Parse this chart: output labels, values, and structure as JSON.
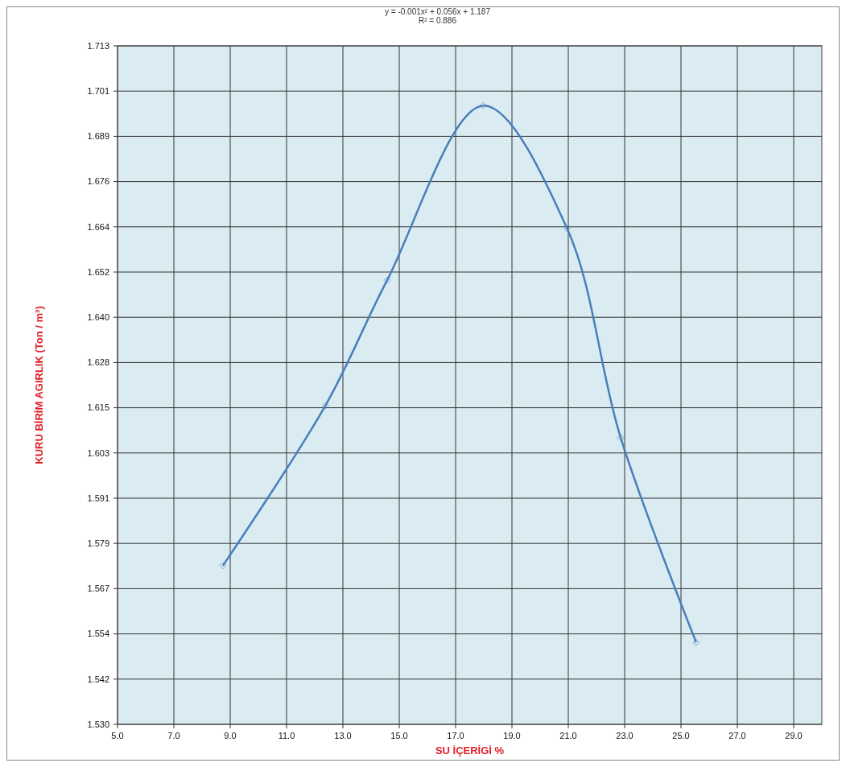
{
  "chart_data": {
    "type": "line",
    "xlabel": "SU İÇERİGİ %",
    "ylabel": "KURU BİRİM AGIRLIK (Ton / m³)",
    "annotations": [
      "y = -0.001x² + 0.056x + 1.187",
      "R² = 0.886"
    ],
    "x": [
      8.74,
      12.38,
      14.57,
      17.98,
      20.96,
      22.86,
      25.54
    ],
    "series": [
      {
        "color": "#4a7ebb",
        "values": [
          1.5728,
          1.616,
          1.6498,
          1.6969,
          1.6637,
          1.6073,
          1.5521
        ]
      }
    ],
    "marker": "diamond",
    "line_style": "solid",
    "grid": true,
    "xlim": [
      5,
      30
    ],
    "xticks": [
      {
        "value": 5,
        "label": "5.0"
      },
      {
        "value": 7,
        "label": "7.0"
      },
      {
        "value": 9,
        "label": "9.0"
      },
      {
        "value": 11,
        "label": "11.0"
      },
      {
        "value": 13,
        "label": "13.0"
      },
      {
        "value": 15,
        "label": "15.0"
      },
      {
        "value": 17,
        "label": "17.0"
      },
      {
        "value": 19,
        "label": "19.0"
      },
      {
        "value": 21,
        "label": "21.0"
      },
      {
        "value": 23,
        "label": "23.0"
      },
      {
        "value": 25,
        "label": "25.0"
      },
      {
        "value": 27,
        "label": "27.0"
      },
      {
        "value": 29,
        "label": "29.0"
      }
    ],
    "ylim": [
      1.53,
      1.713
    ],
    "yticks": [
      {
        "value": 1.53,
        "label": "1.530"
      },
      {
        "value": 1.5422,
        "label": "1.542"
      },
      {
        "value": 1.5544,
        "label": "1.554"
      },
      {
        "value": 1.5666,
        "label": "1.567"
      },
      {
        "value": 1.5788,
        "label": "1.579"
      },
      {
        "value": 1.591,
        "label": "1.591"
      },
      {
        "value": 1.6032,
        "label": "1.603"
      },
      {
        "value": 1.6154,
        "label": "1.615"
      },
      {
        "value": 1.6276,
        "label": "1.628"
      },
      {
        "value": 1.6398,
        "label": "1.640"
      },
      {
        "value": 1.652,
        "label": "1.652"
      },
      {
        "value": 1.6642,
        "label": "1.664"
      },
      {
        "value": 1.6764,
        "label": "1.676"
      },
      {
        "value": 1.6886,
        "label": "1.689"
      },
      {
        "value": 1.7008,
        "label": "1.701"
      },
      {
        "value": 1.713,
        "label": "1.713"
      }
    ]
  }
}
